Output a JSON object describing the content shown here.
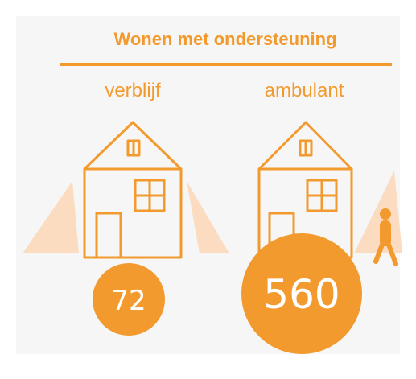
{
  "header": {
    "title": "Wonen met ondersteuning"
  },
  "items": [
    {
      "label": "verblijf",
      "value": "72"
    },
    {
      "label": "ambulant",
      "value": "560"
    }
  ]
}
